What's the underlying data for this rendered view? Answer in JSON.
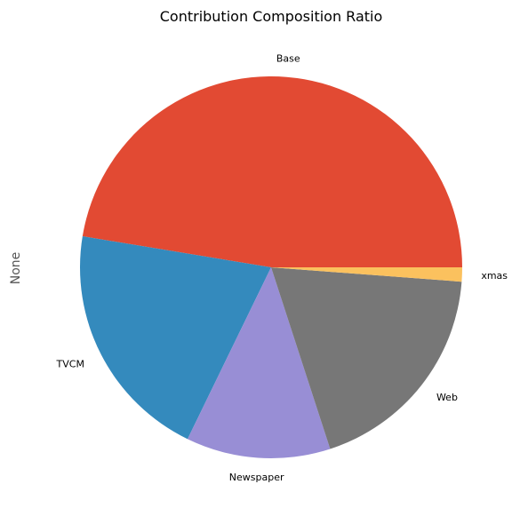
{
  "chart_data": {
    "type": "pie",
    "title": "Contribution Composition Ratio",
    "ylabel": "None",
    "start_angle_deg": 0,
    "direction": "counterclockwise",
    "slices": [
      {
        "label": "Base",
        "value": 47.4,
        "color": "#E24A33"
      },
      {
        "label": "TVCM",
        "value": 20.4,
        "color": "#348ABD"
      },
      {
        "label": "Newspaper",
        "value": 12.2,
        "color": "#988ED5"
      },
      {
        "label": "Web",
        "value": 18.8,
        "color": "#777777"
      },
      {
        "label": "xmas",
        "value": 1.2,
        "color": "#FBC15E"
      }
    ]
  }
}
